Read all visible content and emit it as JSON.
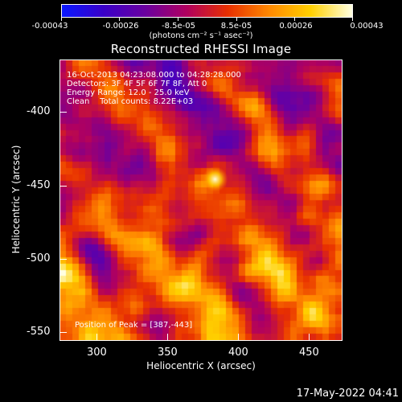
{
  "colorbar": {
    "ticks": [
      "-0.00043",
      "-0.00026",
      "-8.5e-05",
      "8.5e-05",
      "0.00026",
      "0.00043"
    ],
    "unit": "(photons cm⁻² s⁻¹ asec⁻²)",
    "range": [
      -0.00043,
      0.00043
    ],
    "gradient": [
      "#0a18ff",
      "#3a00c8",
      "#6a00a0",
      "#b00060",
      "#e83000",
      "#ff8800",
      "#ffd000",
      "#ffffe0"
    ]
  },
  "title": "Reconstructed RHESSI Image",
  "info": {
    "time": "16-Oct-2013 04:23:08.000 to 04:28:28.000",
    "detectors": "Detectors: 3F 4F 5F 6F 7F 8F, Att 0",
    "energy": "Energy Range: 12.0 - 25.0 keV",
    "clean": "Clean    Total counts: 8.22E+03"
  },
  "peak": "Position of Peak = [387,-443]",
  "axes": {
    "xlabel": "Heliocentric X (arcsec)",
    "ylabel": "Heliocentric Y (arcsec)",
    "xticks": [
      "300",
      "350",
      "400",
      "450"
    ],
    "yticks": [
      "-400",
      "-450",
      "-500",
      "-550"
    ],
    "xlim": [
      277,
      477
    ],
    "ylim": [
      -558,
      -358
    ]
  },
  "footer": "17-May-2022 04:41"
}
